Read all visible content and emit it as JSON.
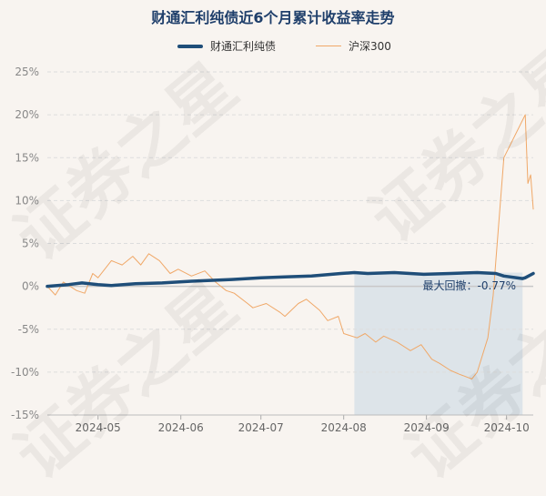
{
  "title": "财通汇利纯债近6个月累计收益率走势",
  "legend": {
    "fund": "财通汇利纯债",
    "index": "沪深300"
  },
  "watermark": "证券之星",
  "colors": {
    "fund": "#1f4e79",
    "index": "#f0a868",
    "drawdown_band": "#d8e0e8",
    "zero_line": "#c8c8c8",
    "grid": "#dddddd"
  },
  "chart_data": {
    "type": "line",
    "title": "财通汇利纯债近6个月累计收益率走势",
    "xlabel": "",
    "ylabel": "",
    "ylim": [
      -15,
      25
    ],
    "yticks": [
      -15,
      -10,
      -5,
      0,
      5,
      10,
      15,
      20,
      25
    ],
    "ytick_labels": [
      "-15%",
      "-10%",
      "-5%",
      "0%",
      "5%",
      "10%",
      "15%",
      "20%",
      "25%"
    ],
    "x_range": [
      "2024-04-12",
      "2024-10-11"
    ],
    "x_ticks": [
      {
        "date": "2024-05-01",
        "label": "2024-05"
      },
      {
        "date": "2024-06-01",
        "label": "2024-06"
      },
      {
        "date": "2024-07-01",
        "label": "2024-07"
      },
      {
        "date": "2024-08-01",
        "label": "2024-08"
      },
      {
        "date": "2024-09-01",
        "label": "2024-09"
      },
      {
        "date": "2024-10-01",
        "label": "2024-10"
      }
    ],
    "grid": "horizontal dashed",
    "legend_position": "top",
    "series": [
      {
        "name": "财通汇利纯债",
        "points": [
          [
            "2024-04-12",
            0.0
          ],
          [
            "2024-04-20",
            0.2
          ],
          [
            "2024-04-25",
            0.4
          ],
          [
            "2024-05-01",
            0.2
          ],
          [
            "2024-05-06",
            0.1
          ],
          [
            "2024-05-15",
            0.3
          ],
          [
            "2024-05-25",
            0.4
          ],
          [
            "2024-06-05",
            0.6
          ],
          [
            "2024-06-20",
            0.8
          ],
          [
            "2024-07-01",
            1.0
          ],
          [
            "2024-07-10",
            1.1
          ],
          [
            "2024-07-20",
            1.2
          ],
          [
            "2024-07-31",
            1.5
          ],
          [
            "2024-08-05",
            1.6
          ],
          [
            "2024-08-10",
            1.5
          ],
          [
            "2024-08-20",
            1.6
          ],
          [
            "2024-08-31",
            1.4
          ],
          [
            "2024-09-10",
            1.5
          ],
          [
            "2024-09-20",
            1.6
          ],
          [
            "2024-09-27",
            1.5
          ],
          [
            "2024-09-30",
            1.2
          ],
          [
            "2024-10-07",
            0.9
          ],
          [
            "2024-10-08",
            1.0
          ],
          [
            "2024-10-11",
            1.5
          ]
        ]
      },
      {
        "name": "沪深300",
        "points": [
          [
            "2024-04-12",
            0.0
          ],
          [
            "2024-04-15",
            -1.0
          ],
          [
            "2024-04-18",
            0.5
          ],
          [
            "2024-04-23",
            -0.5
          ],
          [
            "2024-04-26",
            -0.8
          ],
          [
            "2024-04-29",
            1.5
          ],
          [
            "2024-05-01",
            1.0
          ],
          [
            "2024-05-06",
            3.0
          ],
          [
            "2024-05-10",
            2.5
          ],
          [
            "2024-05-14",
            3.5
          ],
          [
            "2024-05-17",
            2.5
          ],
          [
            "2024-05-20",
            3.8
          ],
          [
            "2024-05-24",
            3.0
          ],
          [
            "2024-05-28",
            1.5
          ],
          [
            "2024-05-31",
            2.0
          ],
          [
            "2024-06-05",
            1.2
          ],
          [
            "2024-06-10",
            1.8
          ],
          [
            "2024-06-14",
            0.5
          ],
          [
            "2024-06-18",
            -0.5
          ],
          [
            "2024-06-21",
            -0.8
          ],
          [
            "2024-06-26",
            -2.0
          ],
          [
            "2024-06-28",
            -2.5
          ],
          [
            "2024-07-03",
            -2.0
          ],
          [
            "2024-07-08",
            -3.0
          ],
          [
            "2024-07-10",
            -3.5
          ],
          [
            "2024-07-15",
            -2.0
          ],
          [
            "2024-07-18",
            -1.5
          ],
          [
            "2024-07-23",
            -2.8
          ],
          [
            "2024-07-26",
            -4.0
          ],
          [
            "2024-07-30",
            -3.5
          ],
          [
            "2024-08-01",
            -5.5
          ],
          [
            "2024-08-06",
            -6.0
          ],
          [
            "2024-08-09",
            -5.5
          ],
          [
            "2024-08-13",
            -6.5
          ],
          [
            "2024-08-16",
            -5.8
          ],
          [
            "2024-08-21",
            -6.5
          ],
          [
            "2024-08-26",
            -7.5
          ],
          [
            "2024-08-30",
            -6.8
          ],
          [
            "2024-09-03",
            -8.5
          ],
          [
            "2024-09-06",
            -9.0
          ],
          [
            "2024-09-10",
            -9.8
          ],
          [
            "2024-09-13",
            -10.2
          ],
          [
            "2024-09-18",
            -10.8
          ],
          [
            "2024-09-20",
            -10.0
          ],
          [
            "2024-09-24",
            -6.0
          ],
          [
            "2024-09-26",
            -1.0
          ],
          [
            "2024-09-27",
            3.0
          ],
          [
            "2024-09-30",
            15.0
          ],
          [
            "2024-10-08",
            20.0
          ],
          [
            "2024-10-09",
            12.0
          ],
          [
            "2024-10-10",
            13.0
          ],
          [
            "2024-10-11",
            9.0
          ]
        ]
      }
    ],
    "annotations": [
      {
        "text": "最大回撤：-0.77%",
        "shaded_range": [
          "2024-08-05",
          "2024-10-07"
        ]
      }
    ]
  }
}
